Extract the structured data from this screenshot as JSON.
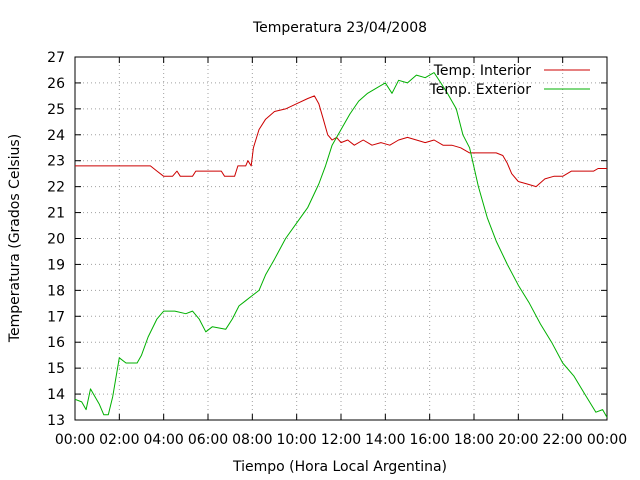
{
  "chart_data": {
    "type": "line",
    "title": "Temperatura 23/04/2008",
    "xlabel": "Tiempo (Hora Local Argentina)",
    "ylabel": "Temperatura (Grados Celsius)",
    "xlim": [
      0,
      24
    ],
    "ylim": [
      13,
      27
    ],
    "xticks": [
      {
        "value": 0,
        "label": "00:00"
      },
      {
        "value": 2,
        "label": "02:00"
      },
      {
        "value": 4,
        "label": "04:00"
      },
      {
        "value": 6,
        "label": "06:00"
      },
      {
        "value": 8,
        "label": "08:00"
      },
      {
        "value": 10,
        "label": "10:00"
      },
      {
        "value": 12,
        "label": "12:00"
      },
      {
        "value": 14,
        "label": "14:00"
      },
      {
        "value": 16,
        "label": "16:00"
      },
      {
        "value": 18,
        "label": "18:00"
      },
      {
        "value": 20,
        "label": "20:00"
      },
      {
        "value": 22,
        "label": "22:00"
      },
      {
        "value": 24,
        "label": "00:00"
      }
    ],
    "yticks": [
      13,
      14,
      15,
      16,
      17,
      18,
      19,
      20,
      21,
      22,
      23,
      24,
      25,
      26,
      27
    ],
    "grid": true,
    "legend_position": "top-right",
    "series": [
      {
        "name": "Temp. Interior",
        "color": "#cc0000",
        "points": [
          [
            0,
            22.8
          ],
          [
            1,
            22.8
          ],
          [
            2,
            22.8
          ],
          [
            3,
            22.8
          ],
          [
            3.4,
            22.8
          ],
          [
            3.7,
            22.6
          ],
          [
            4,
            22.4
          ],
          [
            4.4,
            22.4
          ],
          [
            4.6,
            22.6
          ],
          [
            4.75,
            22.4
          ],
          [
            5.3,
            22.4
          ],
          [
            5.45,
            22.6
          ],
          [
            6,
            22.6
          ],
          [
            6.6,
            22.6
          ],
          [
            6.75,
            22.4
          ],
          [
            7.2,
            22.4
          ],
          [
            7.35,
            22.8
          ],
          [
            7.7,
            22.8
          ],
          [
            7.8,
            23.0
          ],
          [
            7.95,
            22.8
          ],
          [
            8.05,
            23.5
          ],
          [
            8.3,
            24.2
          ],
          [
            8.6,
            24.6
          ],
          [
            9,
            24.9
          ],
          [
            9.5,
            25.0
          ],
          [
            10,
            25.2
          ],
          [
            10.5,
            25.4
          ],
          [
            10.8,
            25.5
          ],
          [
            11,
            25.2
          ],
          [
            11.2,
            24.6
          ],
          [
            11.4,
            24.0
          ],
          [
            11.6,
            23.8
          ],
          [
            11.8,
            23.9
          ],
          [
            12,
            23.7
          ],
          [
            12.3,
            23.8
          ],
          [
            12.6,
            23.6
          ],
          [
            13,
            23.8
          ],
          [
            13.4,
            23.6
          ],
          [
            13.8,
            23.7
          ],
          [
            14.2,
            23.6
          ],
          [
            14.6,
            23.8
          ],
          [
            15,
            23.9
          ],
          [
            15.4,
            23.8
          ],
          [
            15.8,
            23.7
          ],
          [
            16.2,
            23.8
          ],
          [
            16.6,
            23.6
          ],
          [
            17,
            23.6
          ],
          [
            17.4,
            23.5
          ],
          [
            17.8,
            23.3
          ],
          [
            18.2,
            23.3
          ],
          [
            18.6,
            23.3
          ],
          [
            19,
            23.3
          ],
          [
            19.3,
            23.2
          ],
          [
            19.5,
            22.9
          ],
          [
            19.7,
            22.5
          ],
          [
            20,
            22.2
          ],
          [
            20.4,
            22.1
          ],
          [
            20.8,
            22.0
          ],
          [
            21.2,
            22.3
          ],
          [
            21.6,
            22.4
          ],
          [
            22,
            22.4
          ],
          [
            22.4,
            22.6
          ],
          [
            23,
            22.6
          ],
          [
            23.4,
            22.6
          ],
          [
            23.6,
            22.7
          ],
          [
            24,
            22.7
          ]
        ]
      },
      {
        "name": "Temp. Exterior",
        "color": "#00b000",
        "points": [
          [
            0,
            13.8
          ],
          [
            0.3,
            13.7
          ],
          [
            0.5,
            13.4
          ],
          [
            0.7,
            14.2
          ],
          [
            0.9,
            13.9
          ],
          [
            1.1,
            13.6
          ],
          [
            1.3,
            13.2
          ],
          [
            1.5,
            13.2
          ],
          [
            1.7,
            13.9
          ],
          [
            2,
            15.4
          ],
          [
            2.3,
            15.2
          ],
          [
            2.8,
            15.2
          ],
          [
            3,
            15.5
          ],
          [
            3.3,
            16.2
          ],
          [
            3.7,
            16.9
          ],
          [
            4,
            17.2
          ],
          [
            4.5,
            17.2
          ],
          [
            5,
            17.1
          ],
          [
            5.3,
            17.2
          ],
          [
            5.6,
            16.9
          ],
          [
            5.9,
            16.4
          ],
          [
            6.2,
            16.6
          ],
          [
            6.8,
            16.5
          ],
          [
            7.1,
            16.9
          ],
          [
            7.4,
            17.4
          ],
          [
            7.7,
            17.6
          ],
          [
            8,
            17.8
          ],
          [
            8.3,
            18.0
          ],
          [
            8.6,
            18.6
          ],
          [
            9,
            19.2
          ],
          [
            9.5,
            20.0
          ],
          [
            10,
            20.6
          ],
          [
            10.5,
            21.2
          ],
          [
            11,
            22.1
          ],
          [
            11.3,
            22.8
          ],
          [
            11.6,
            23.6
          ],
          [
            12,
            24.2
          ],
          [
            12.4,
            24.8
          ],
          [
            12.8,
            25.3
          ],
          [
            13.2,
            25.6
          ],
          [
            13.6,
            25.8
          ],
          [
            14,
            26.0
          ],
          [
            14.3,
            25.6
          ],
          [
            14.6,
            26.1
          ],
          [
            15,
            26.0
          ],
          [
            15.4,
            26.3
          ],
          [
            15.8,
            26.2
          ],
          [
            16.2,
            26.4
          ],
          [
            16.5,
            26.0
          ],
          [
            16.8,
            25.6
          ],
          [
            17.2,
            25.0
          ],
          [
            17.5,
            24.0
          ],
          [
            17.8,
            23.5
          ],
          [
            18.2,
            22.0
          ],
          [
            18.6,
            20.8
          ],
          [
            19,
            19.9
          ],
          [
            19.5,
            19.0
          ],
          [
            20,
            18.2
          ],
          [
            20.5,
            17.5
          ],
          [
            21,
            16.7
          ],
          [
            21.5,
            16.0
          ],
          [
            22,
            15.2
          ],
          [
            22.5,
            14.7
          ],
          [
            23,
            14.0
          ],
          [
            23.5,
            13.3
          ],
          [
            23.8,
            13.4
          ],
          [
            24,
            13.1
          ]
        ]
      }
    ]
  }
}
